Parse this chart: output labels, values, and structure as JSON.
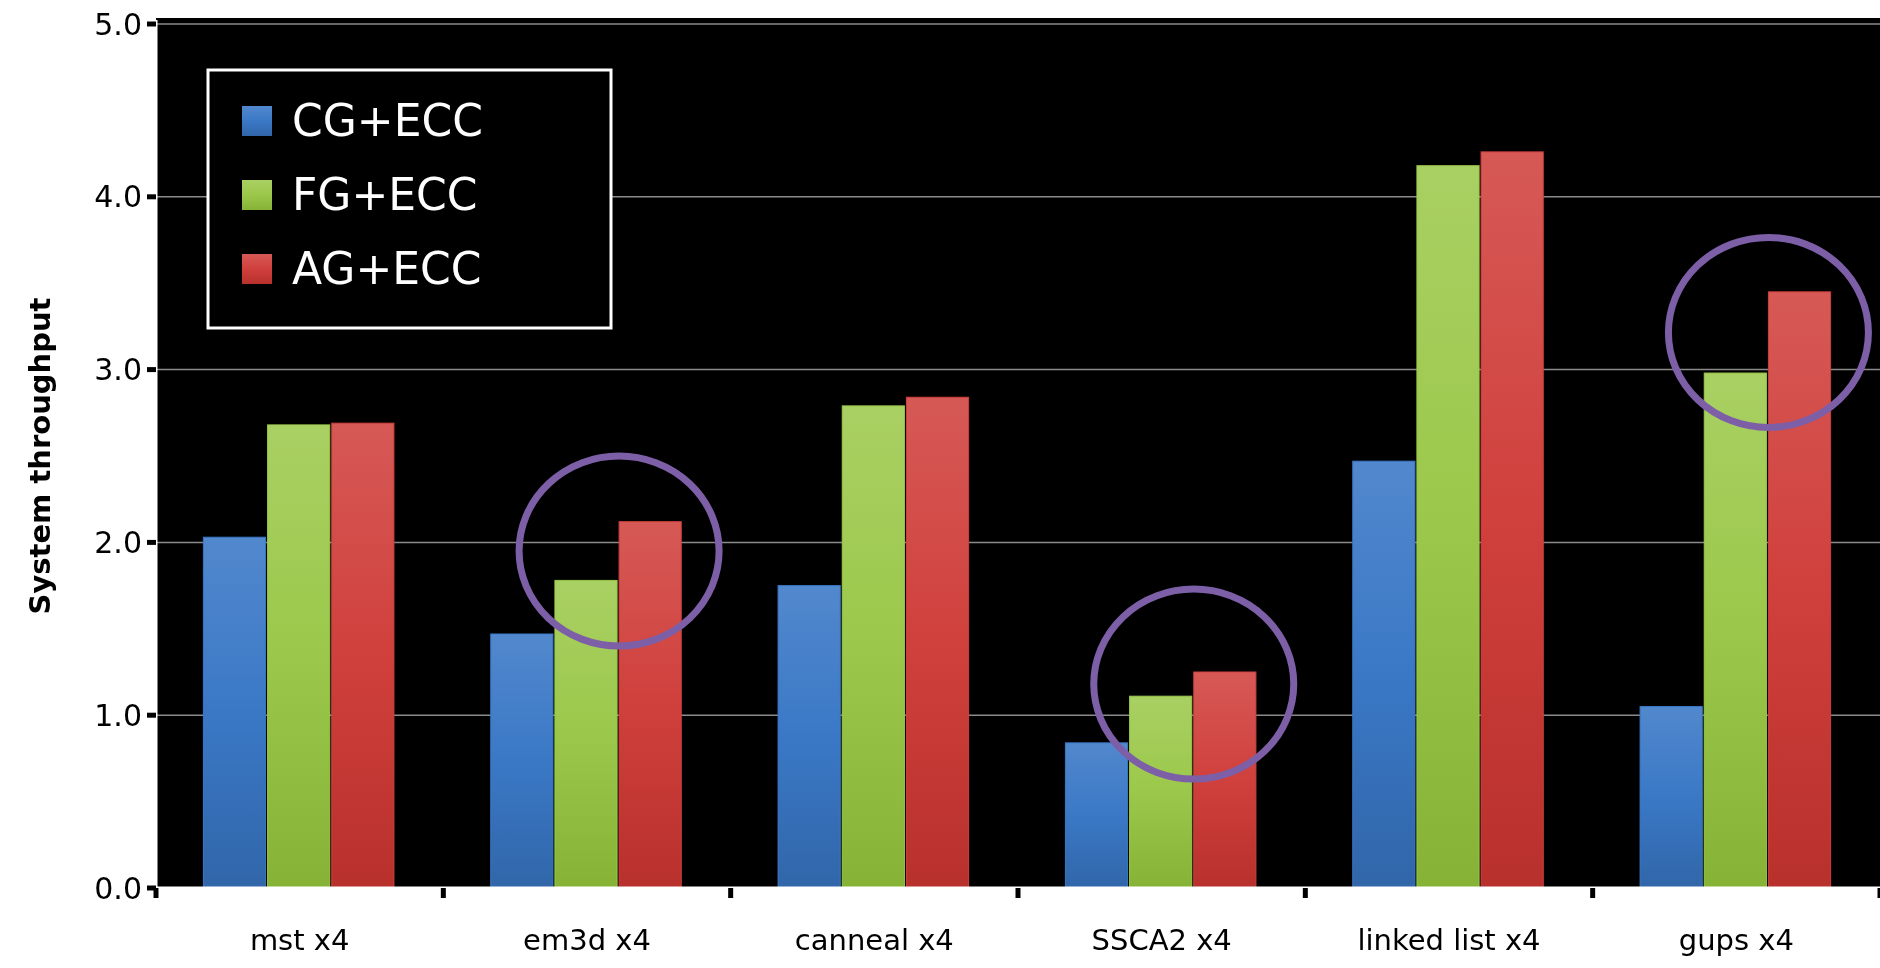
{
  "chart_data": {
    "type": "bar",
    "ylabel": "System throughput",
    "categories": [
      "mst x4",
      "em3d x4",
      "canneal x4",
      "SSCA2 x4",
      "linked list x4",
      "gups x4"
    ],
    "series": [
      {
        "name": "CG+ECC",
        "color": "#3a78c6",
        "values": [
          2.03,
          1.47,
          1.75,
          0.84,
          2.47,
          1.05
        ]
      },
      {
        "name": "FG+ECC",
        "color": "#9bc84a",
        "values": [
          2.68,
          1.78,
          2.79,
          1.11,
          4.18,
          2.98
        ]
      },
      {
        "name": "AG+ECC",
        "color": "#d0403c",
        "values": [
          2.69,
          2.12,
          2.84,
          1.25,
          4.26,
          3.45
        ]
      }
    ],
    "ylim": [
      0,
      5
    ],
    "yticks": [
      {
        "value": 0,
        "label": "0.0"
      },
      {
        "value": 1,
        "label": "1.0"
      },
      {
        "value": 2,
        "label": "2.0"
      },
      {
        "value": 3,
        "label": "3.0"
      },
      {
        "value": 4,
        "label": "4.0"
      },
      {
        "value": 5,
        "label": "5.0"
      }
    ],
    "grid": "y",
    "legend": "top left"
  }
}
